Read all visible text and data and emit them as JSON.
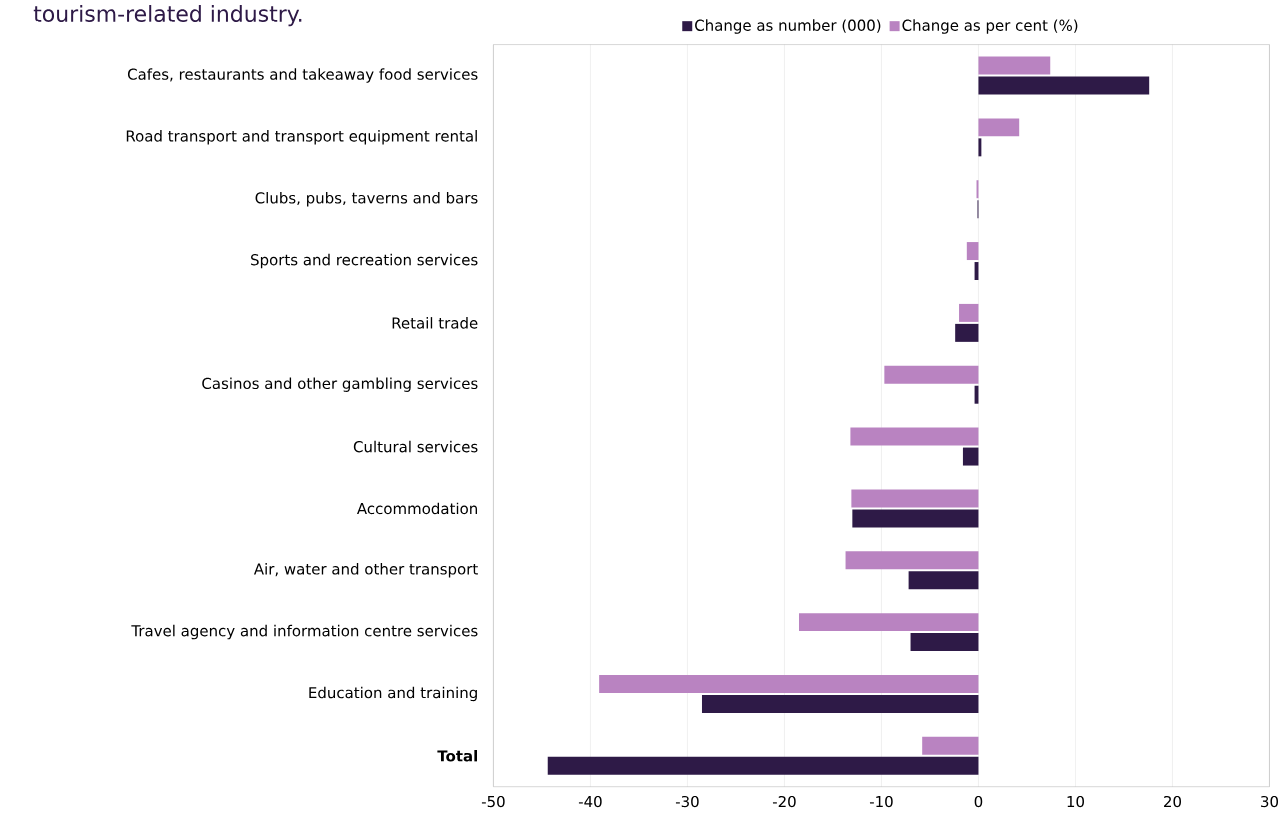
{
  "chart_data": {
    "type": "bar",
    "orientation": "horizontal",
    "title": "tourism-related industry.",
    "categories": [
      "Cafes, restaurants and takeaway food services",
      "Road transport and transport equipment rental",
      "Clubs, pubs, taverns and bars",
      "Sports and recreation services",
      "Retail trade",
      "Casinos and other gambling services",
      "Cultural services",
      "Accommodation",
      "Air, water and other transport",
      "Travel agency and information centre services",
      "Education and training",
      "Total"
    ],
    "series": [
      {
        "name": "Change as number (000)",
        "color": "#2e1a47",
        "values": [
          17.6,
          0.3,
          -0.1,
          -0.4,
          -2.4,
          -0.4,
          -1.6,
          -13.0,
          -7.2,
          -7.0,
          -28.5,
          -44.4
        ]
      },
      {
        "name": "Change as per cent (%)",
        "color": "#b983c1",
        "values": [
          7.4,
          4.2,
          -0.2,
          -1.2,
          -2.0,
          -9.7,
          -13.2,
          -13.1,
          -13.7,
          -18.5,
          -39.1,
          -5.8
        ]
      }
    ],
    "xlim": [
      -50,
      30
    ],
    "xticks": [
      -50,
      -40,
      -30,
      -20,
      -10,
      0,
      10,
      20,
      30
    ],
    "grid": "x",
    "legend": "top"
  }
}
